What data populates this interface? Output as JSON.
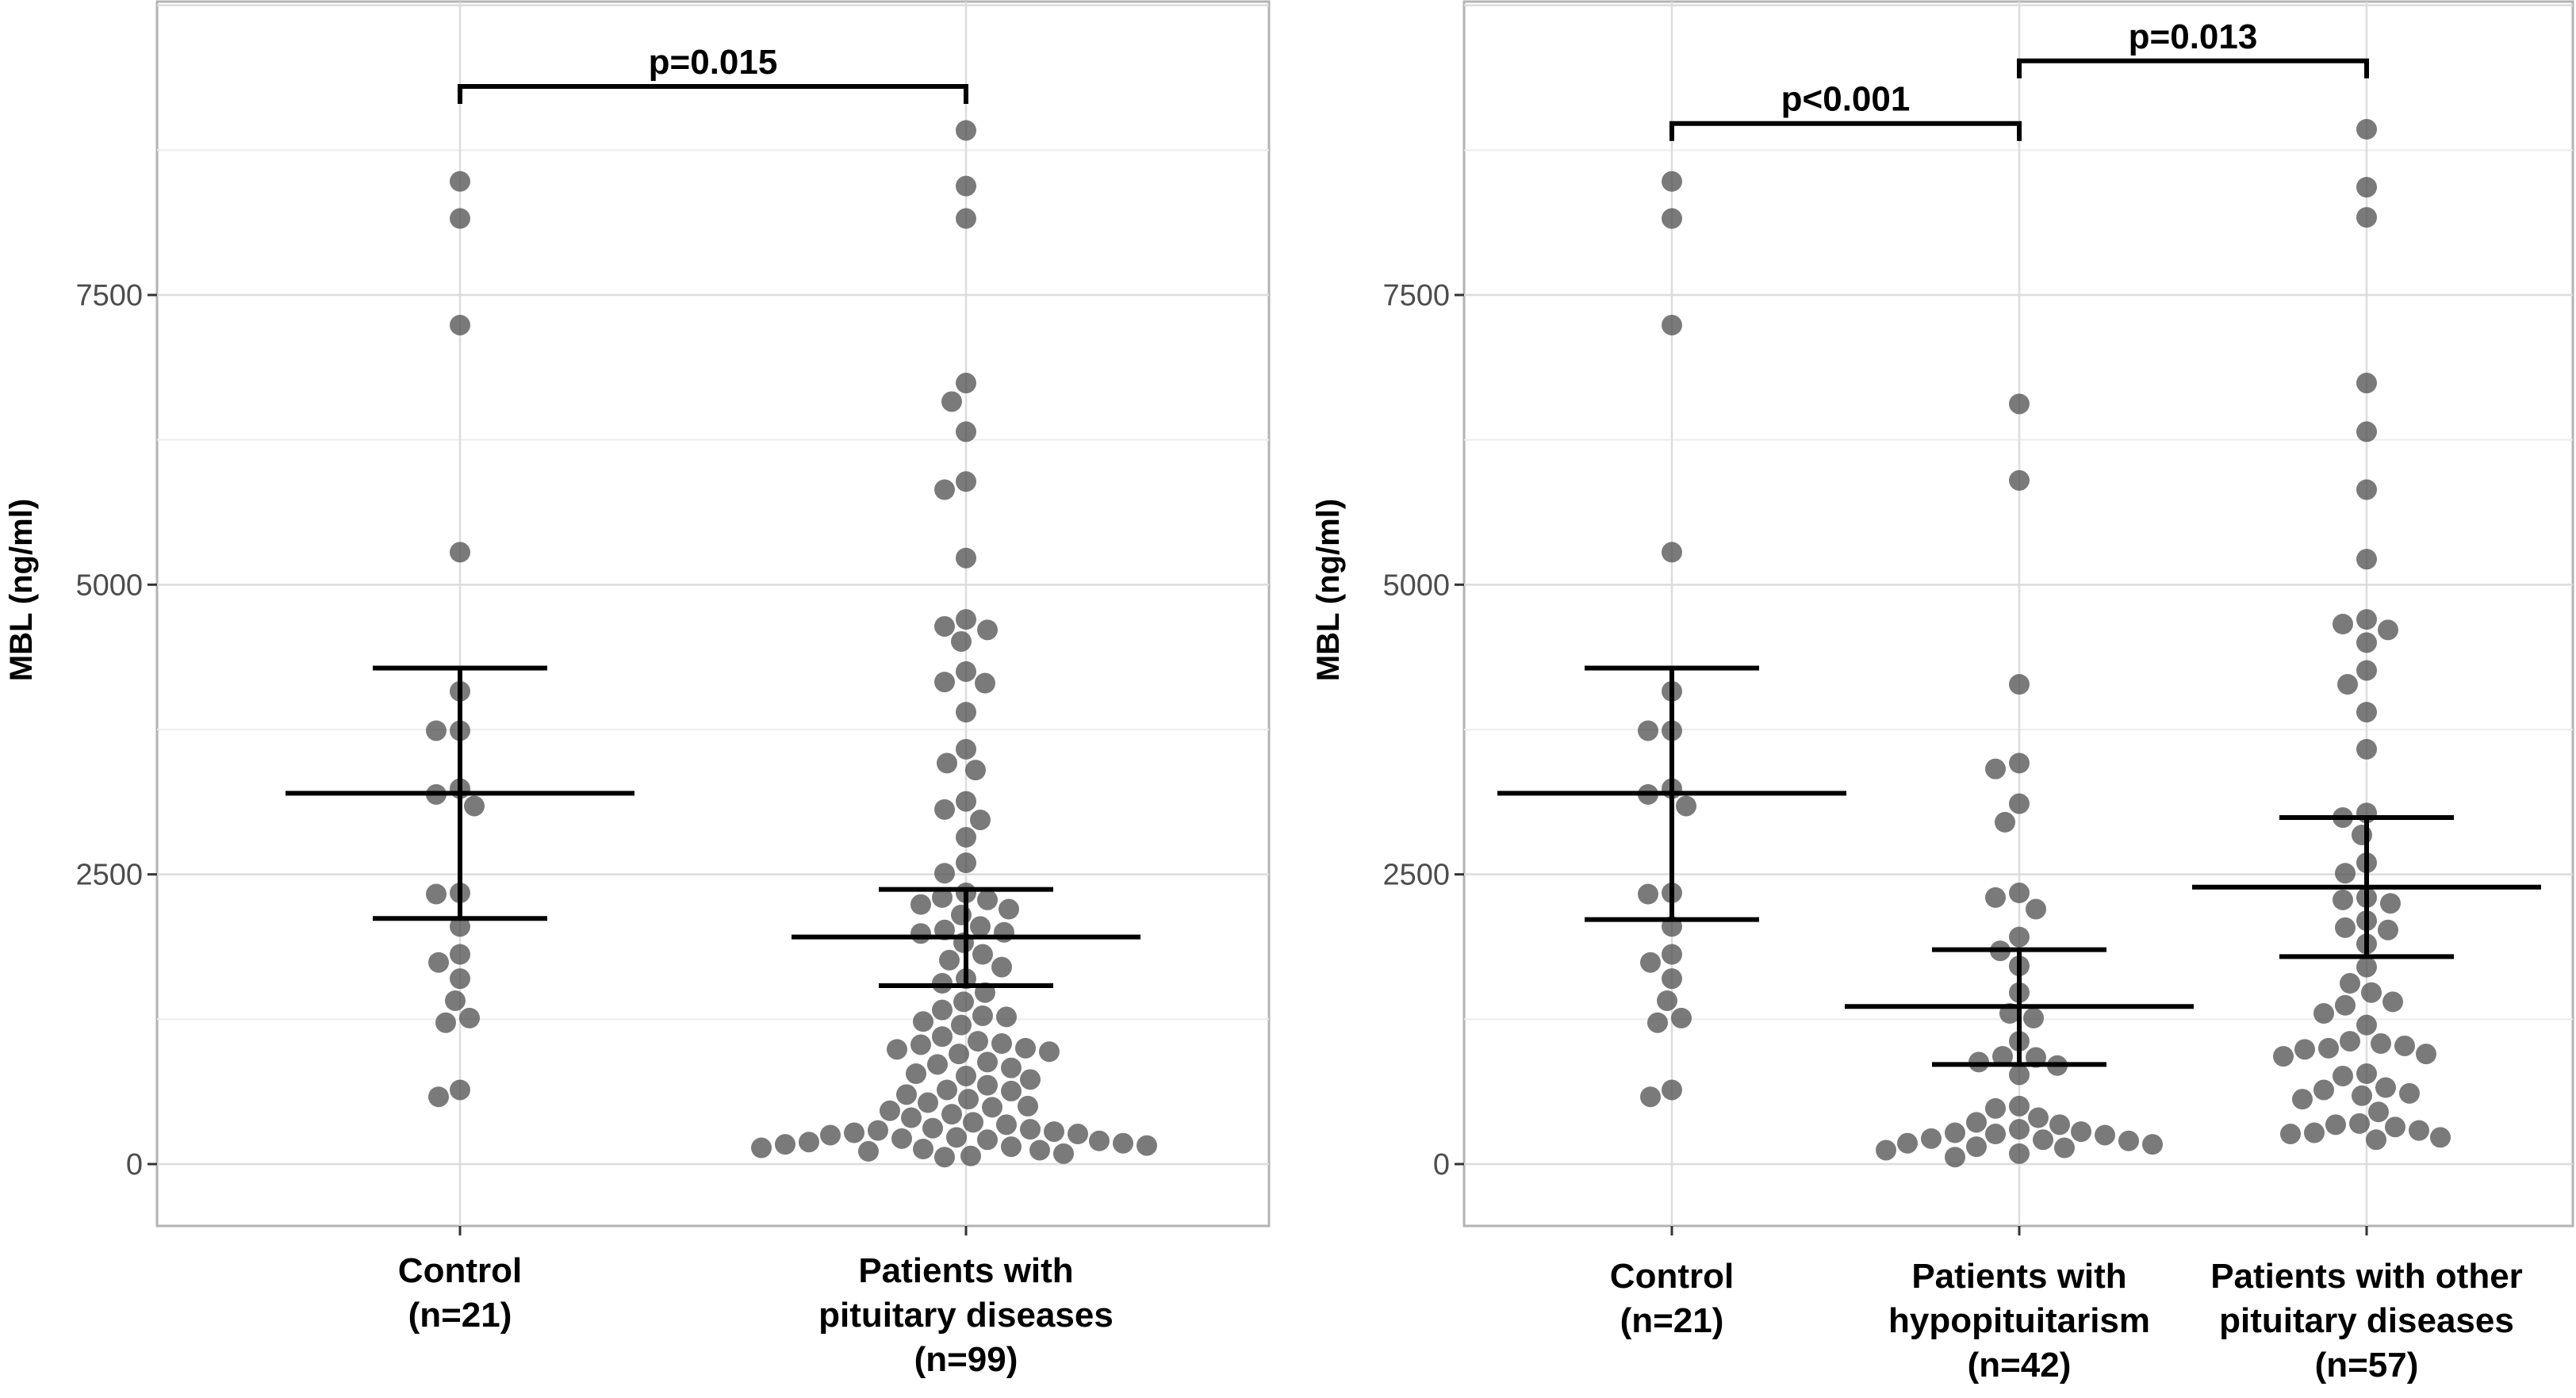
{
  "chart_data": [
    {
      "type": "scatter",
      "subtype": "dot-plot with mean and 95% CI",
      "ylabel": "MBL (ng/ml)",
      "ylim": [
        -550,
        10000
      ],
      "yticks": [
        0,
        2500,
        5000,
        7500
      ],
      "grid": true,
      "categories": [
        {
          "lines": [
            "Control",
            "(n=21)"
          ]
        },
        {
          "lines": [
            "Patients with",
            "pituitary diseases",
            "(n=99)"
          ]
        }
      ],
      "summary": [
        {
          "mean": 3200,
          "lower": 2120,
          "upper": 4280
        },
        {
          "mean": 1960,
          "lower": 1540,
          "upper": 2370
        }
      ],
      "comparisons": [
        {
          "from": 0,
          "to": 1,
          "label": "p=0.015",
          "level": 9300
        }
      ],
      "points": [
        [
          8480,
          8160,
          7240,
          5280,
          4080,
          3740,
          3740,
          3240,
          3190,
          3090,
          2340,
          2330,
          2050,
          1810,
          1740,
          1600,
          1410,
          1260,
          1220,
          640,
          580
        ],
        [
          8920,
          8440,
          8160,
          6740,
          6580,
          6320,
          5890,
          5820,
          5230,
          4700,
          4640,
          4610,
          4510,
          4250,
          4160,
          4150,
          3900,
          3580,
          3460,
          3400,
          3130,
          3060,
          2970,
          2820,
          2600,
          2510,
          2340,
          2300,
          2280,
          2240,
          2200,
          2150,
          2050,
          2020,
          2000,
          1990,
          1910,
          1810,
          1760,
          1700,
          1600,
          1560,
          1480,
          1400,
          1330,
          1280,
          1270,
          1230,
          1200,
          1100,
          1060,
          1040,
          1030,
          1000,
          990,
          970,
          950,
          880,
          860,
          830,
          780,
          760,
          730,
          680,
          640,
          630,
          600,
          560,
          530,
          500,
          490,
          460,
          430,
          400,
          360,
          340,
          310,
          300,
          290,
          280,
          270,
          260,
          250,
          230,
          220,
          210,
          200,
          190,
          180,
          170,
          160,
          150,
          140,
          130,
          120,
          110,
          90,
          70,
          60
        ]
      ]
    },
    {
      "type": "scatter",
      "subtype": "dot-plot with mean and 95% CI",
      "ylabel": "MBL (ng/ml)",
      "ylim": [
        -550,
        10000
      ],
      "yticks": [
        0,
        2500,
        5000,
        7500
      ],
      "grid": true,
      "categories": [
        {
          "lines": [
            "Control",
            "(n=21)"
          ]
        },
        {
          "lines": [
            "Patients with",
            "hypopituitarism",
            "(n=42)"
          ]
        },
        {
          "lines": [
            "Patients with other",
            "pituitary diseases",
            "(n=57)"
          ]
        }
      ],
      "summary": [
        {
          "mean": 3200,
          "lower": 2110,
          "upper": 4280
        },
        {
          "mean": 1360,
          "lower": 860,
          "upper": 1850
        },
        {
          "mean": 2390,
          "lower": 1790,
          "upper": 2990
        }
      ],
      "comparisons": [
        {
          "from": 0,
          "to": 1,
          "label": "p<0.001",
          "level": 8980
        },
        {
          "from": 1,
          "to": 2,
          "label": "p=0.013",
          "level": 9520
        }
      ],
      "points": [
        [
          8480,
          8160,
          7240,
          5280,
          4080,
          3740,
          3740,
          3240,
          3190,
          3090,
          2340,
          2330,
          2050,
          1810,
          1740,
          1600,
          1410,
          1260,
          1220,
          640,
          580
        ],
        [
          6560,
          5900,
          4140,
          3460,
          3410,
          3110,
          2950,
          2340,
          2300,
          2200,
          1960,
          1840,
          1710,
          1480,
          1300,
          1260,
          1060,
          930,
          920,
          880,
          850,
          770,
          500,
          480,
          400,
          360,
          340,
          300,
          280,
          270,
          260,
          250,
          220,
          210,
          200,
          180,
          170,
          150,
          140,
          120,
          90,
          60
        ],
        [
          8930,
          8430,
          8170,
          6740,
          6320,
          5820,
          5220,
          4700,
          4660,
          4610,
          4500,
          4260,
          4140,
          3900,
          3580,
          3030,
          2990,
          2840,
          2600,
          2510,
          2300,
          2280,
          2250,
          2100,
          2040,
          2020,
          1900,
          1700,
          1560,
          1480,
          1400,
          1370,
          1300,
          1200,
          1060,
          1040,
          1020,
          1000,
          990,
          950,
          930,
          780,
          760,
          660,
          640,
          610,
          590,
          560,
          450,
          350,
          340,
          320,
          290,
          270,
          260,
          230,
          210
        ]
      ]
    }
  ]
}
